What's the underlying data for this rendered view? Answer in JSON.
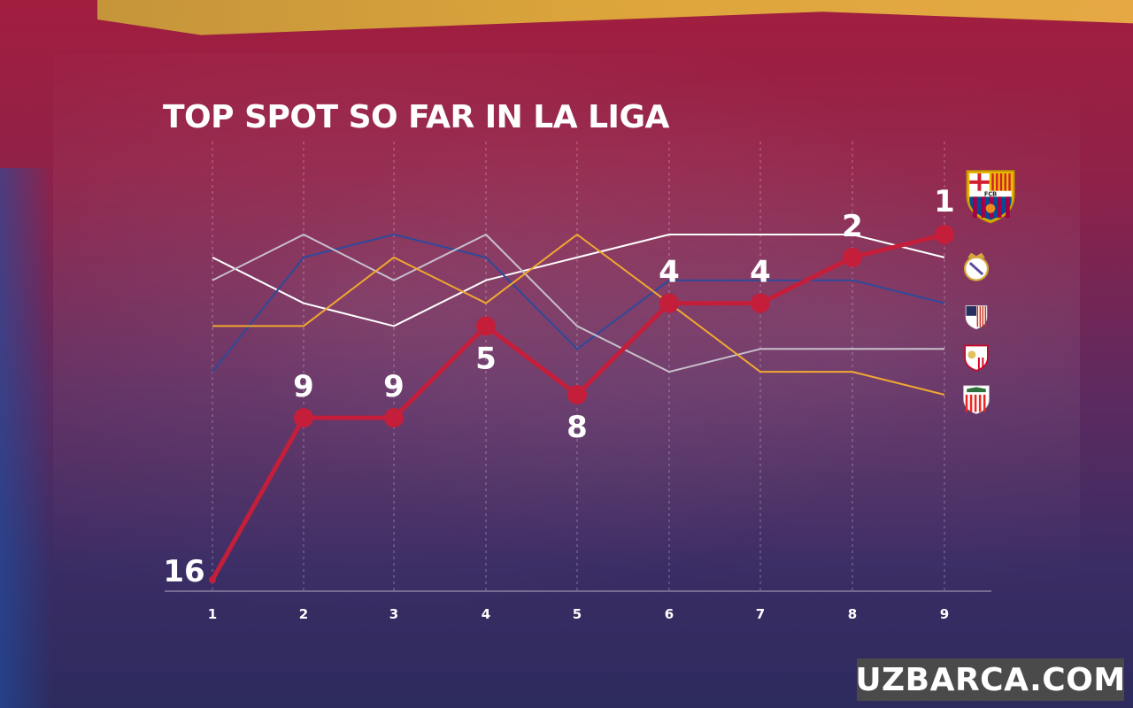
{
  "chart_data": {
    "type": "line",
    "title": "TOP SPOT SO FAR IN LA LIGA",
    "x": [
      1,
      2,
      3,
      4,
      5,
      6,
      7,
      8,
      9
    ],
    "ylim": [
      1,
      16
    ],
    "y_inverted": true,
    "grid": "vertical dashed",
    "series": [
      {
        "color": "#c41e3a",
        "highlight": true,
        "values": [
          16,
          9,
          9,
          5,
          8,
          4,
          4,
          2,
          1
        ],
        "labels": [
          "16",
          "9",
          "9",
          "5",
          "8",
          "4",
          "4",
          "2",
          "1"
        ]
      },
      {
        "color": "#ffffff",
        "values": [
          2,
          4,
          5,
          3,
          2,
          1,
          1,
          1,
          2
        ]
      },
      {
        "color": "#2e4a9a",
        "values": [
          7,
          2,
          1,
          2,
          6,
          3,
          3,
          3,
          4
        ]
      },
      {
        "color": "#c8c0cc",
        "values": [
          3,
          1,
          3,
          1,
          5,
          7,
          6,
          6,
          6
        ]
      },
      {
        "color": "#f0a830",
        "values": [
          5,
          5,
          2,
          4,
          1,
          4,
          7,
          7,
          8
        ]
      }
    ]
  },
  "crests": [
    {
      "icon": "fc-barcelona-crest-icon",
      "text": "FCB",
      "colors": [
        "#a50044",
        "#004d98",
        "#edbb00"
      ]
    },
    {
      "icon": "real-madrid-crest-icon",
      "colors": [
        "#ffffff",
        "#d4a83a"
      ]
    },
    {
      "icon": "atletico-madrid-crest-icon",
      "colors": [
        "#cb3524",
        "#ffffff",
        "#272e61"
      ]
    },
    {
      "icon": "sevilla-crest-icon",
      "colors": [
        "#ffffff",
        "#d1001f"
      ]
    },
    {
      "icon": "athletic-bilbao-crest-icon",
      "colors": [
        "#ee2523",
        "#ffffff"
      ]
    }
  ],
  "watermark": "UZBARCA.COM"
}
